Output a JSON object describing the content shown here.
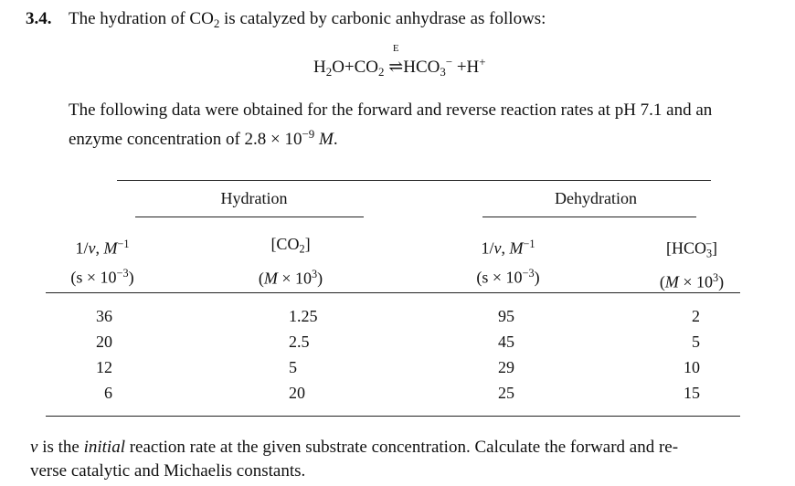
{
  "problem": {
    "number": "3.4.",
    "intro": [
      "The hydration of CO",
      "2",
      " is catalyzed by carbonic anhydrase as follows:"
    ],
    "equation": [
      "H",
      "2",
      "O+CO",
      "2",
      "E",
      "⇌",
      "HCO",
      "3",
      "−",
      " +H",
      "+"
    ],
    "paragraph": [
      "The following data were obtained for the forward and reverse reaction rates at pH 7.1 and an",
      "enzyme concentration of 2.8 × 10",
      "−9",
      "M",
      "."
    ],
    "table": {
      "groups": [
        "Hydration",
        "Dehydration"
      ],
      "headers": [
        [
          "1/",
          "v",
          ", ",
          "M",
          "−1",
          "(s × 10",
          "−3",
          ")"
        ],
        [
          "[CO",
          "2",
          "]",
          "(",
          "M",
          " × 10",
          "3",
          ")"
        ],
        [
          "1/",
          "v",
          ", ",
          "M",
          "−1",
          "(s × 10",
          "−3",
          ")"
        ],
        [
          "[HCO",
          "3",
          "−",
          "]",
          "(",
          "M",
          " × 10",
          "3",
          ")"
        ]
      ],
      "rows": [
        [
          36,
          1.25,
          95,
          2
        ],
        [
          20,
          2.5,
          45,
          5
        ],
        [
          12,
          5,
          29,
          10
        ],
        [
          6,
          20,
          25,
          15
        ]
      ]
    },
    "footer": [
      "v",
      " is the ",
      "initial",
      " reaction rate at the given substrate concentration. Calculate the forward and re-",
      "verse catalytic and Michaelis constants."
    ]
  }
}
